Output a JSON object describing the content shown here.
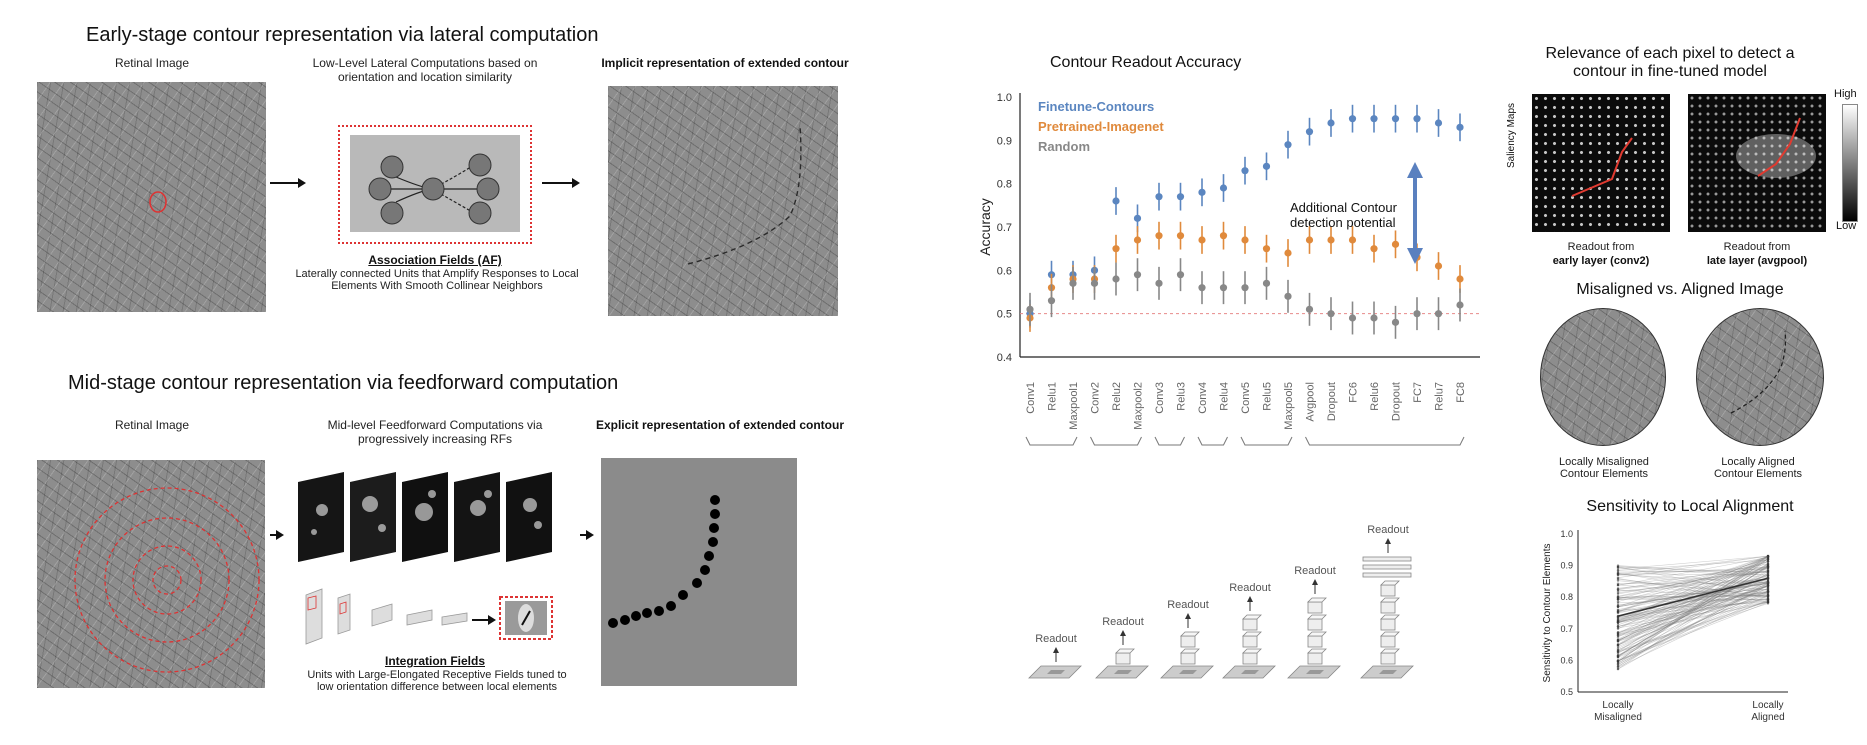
{
  "early": {
    "title": "Early-stage contour representation via lateral computation",
    "retinal_label": "Retinal Image",
    "lateral_label": "Low-Level Lateral Computations based on orientation and location similarity",
    "implicit_label": "Implicit representation of extended contour",
    "af_title": "Association Fields (AF)",
    "af_desc": "Laterally connected Units that Amplify Responses to Local Elements With  Smooth Collinear Neighbors"
  },
  "mid": {
    "title": "Mid-stage contour representation via feedforward computation",
    "retinal_label": "Retinal Image",
    "ff_label": "Mid-level Feedforward Computations via progressively increasing RFs",
    "explicit_label": "Explicit representation of extended contour",
    "if_title": "Integration Fields",
    "if_desc": "Units with Large-Elongated Receptive Fields tuned to low orientation difference between local elements"
  },
  "readout_chart": {
    "annotation": "Additional Contour detection potential",
    "readout_word": "Readout",
    "colors": {
      "finetune": "#5b86c0",
      "pretrained": "#e08a3c",
      "random": "#888888",
      "chance": "#e88a8a"
    }
  },
  "saliency": {
    "title": "Relevance of each pixel to detect a contour in fine-tuned model",
    "side_label": "Saliency Maps",
    "colorbar_high": "High",
    "colorbar_low": "Low",
    "early_caption_1": "Readout from",
    "early_caption_2": "early layer (conv2)",
    "late_caption_1": "Readout from",
    "late_caption_2": "late layer (avgpool)"
  },
  "alignment": {
    "title": "Misaligned vs. Aligned Image",
    "misaligned_caption": "Locally Misaligned Contour Elements",
    "aligned_caption": "Locally Aligned Contour Elements"
  },
  "chart_data": [
    {
      "type": "scatter",
      "title": "Contour Readout Accuracy",
      "ylabel": "Accuracy",
      "ylim": [
        0.4,
        1.0
      ],
      "yticks": [
        "0.4",
        "0.5",
        "0.6",
        "0.7",
        "0.8",
        "0.9",
        "1.0"
      ],
      "chance_level": 0.5,
      "categories": [
        "Conv1",
        "Relu1",
        "Maxpool1",
        "Conv2",
        "Relu2",
        "Maxpool2",
        "Conv3",
        "Relu3",
        "Conv4",
        "Relu4",
        "Conv5",
        "Relu5",
        "Maxpool5",
        "Avgpool",
        "Dropout",
        "FC6",
        "Relu6",
        "Dropout",
        "FC7",
        "Relu7",
        "FC8"
      ],
      "series": [
        {
          "name": "Finetune-Contours",
          "values": [
            0.5,
            0.59,
            0.59,
            0.6,
            0.76,
            0.72,
            0.77,
            0.77,
            0.78,
            0.79,
            0.83,
            0.84,
            0.89,
            0.92,
            0.94,
            0.95,
            0.95,
            0.95,
            0.95,
            0.94,
            0.93
          ]
        },
        {
          "name": "Pretrained-Imagenet",
          "values": [
            0.49,
            0.56,
            0.58,
            0.58,
            0.65,
            0.67,
            0.68,
            0.68,
            0.67,
            0.68,
            0.67,
            0.65,
            0.64,
            0.67,
            0.67,
            0.67,
            0.65,
            0.66,
            0.63,
            0.61,
            0.58
          ]
        },
        {
          "name": "Random",
          "values": [
            0.51,
            0.53,
            0.57,
            0.57,
            0.58,
            0.59,
            0.57,
            0.59,
            0.56,
            0.56,
            0.56,
            0.57,
            0.54,
            0.51,
            0.5,
            0.49,
            0.49,
            0.48,
            0.5,
            0.5,
            0.52
          ]
        }
      ]
    },
    {
      "type": "line",
      "title": "Sensitivity to Local Alignment",
      "ylabel": "Sensitivity to Contour Elements",
      "ylim": [
        0.5,
        1.0
      ],
      "yticks": [
        "0.5",
        "0.6",
        "0.7",
        "0.8",
        "0.9",
        "1.0"
      ],
      "x": [
        "Locally Misaligned",
        "Locally Aligned"
      ],
      "series": [
        {
          "values": [
            0.74,
            0.86
          ]
        }
      ]
    }
  ]
}
